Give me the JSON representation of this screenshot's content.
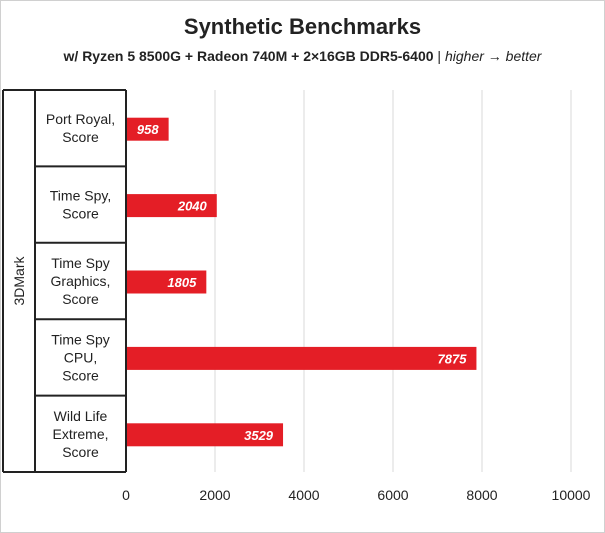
{
  "title": "Synthetic Benchmarks",
  "subtitle_main": "w/ Ryzen 5 8500G + Radeon 740M + 2×16GB DDR5-6400",
  "subtitle_sep": " | ",
  "subtitle_note": "higher → better",
  "colors": {
    "bar": "#e41e26",
    "grid": "#d9d9d9",
    "axis": "#222222",
    "label_text": "#ffffff"
  },
  "chart_data": {
    "type": "bar",
    "orientation": "horizontal",
    "group_label": "3DMark",
    "categories": [
      [
        "Port Royal,",
        "Score"
      ],
      [
        "Time Spy,",
        "Score"
      ],
      [
        "Time Spy",
        "Graphics,",
        "Score"
      ],
      [
        "Time Spy",
        "CPU,",
        "Score"
      ],
      [
        "Wild Life",
        "Extreme,",
        "Score"
      ]
    ],
    "values": [
      958,
      2040,
      1805,
      7875,
      3529
    ],
    "data_labels": [
      "958",
      "2040",
      "1805",
      "7875",
      "3529"
    ],
    "xlim": [
      0,
      10000
    ],
    "xticks": [
      "0",
      "2000",
      "4000",
      "6000",
      "8000",
      "10000"
    ],
    "grid": true,
    "legend": "none"
  }
}
